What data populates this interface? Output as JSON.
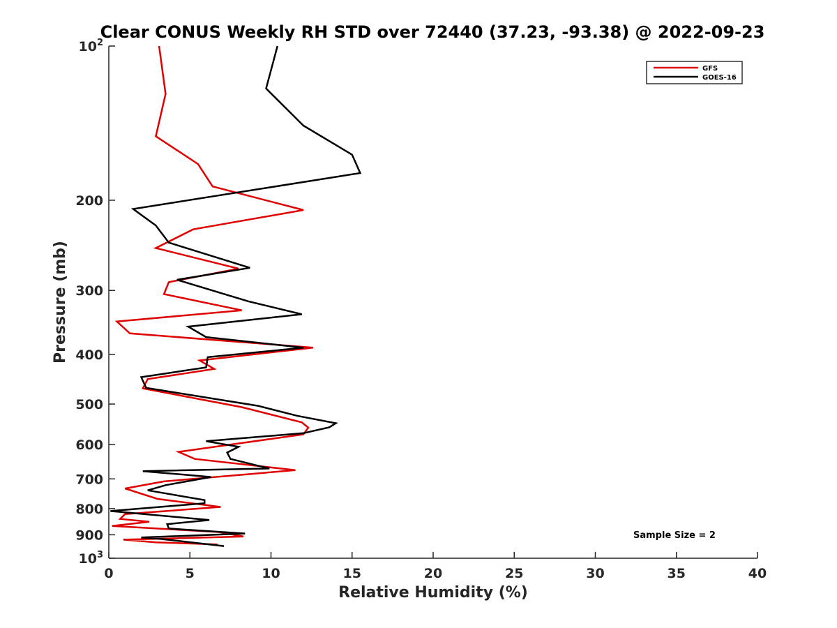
{
  "chart_data": {
    "type": "line",
    "title": "Clear CONUS Weekly RH STD over 72440 (37.23, -93.38) @ 2022-09-23",
    "xlabel": "Relative Humidity (%)",
    "ylabel": "Pressure (mb)",
    "xlim": [
      0,
      40
    ],
    "ylim": [
      100,
      1000
    ],
    "yscale": "log",
    "y_reversed": true,
    "grid": false,
    "legend_position": "top-right",
    "annotation": "Sample Size = 2",
    "x_ticks": [
      "0",
      "5",
      "10",
      "15",
      "20",
      "25",
      "30",
      "35",
      "40"
    ],
    "y_ticks": [
      {
        "value": 100,
        "base": "10",
        "exp": "2"
      },
      {
        "value": 200,
        "label": "200"
      },
      {
        "value": 300,
        "label": "300"
      },
      {
        "value": 400,
        "label": "400"
      },
      {
        "value": 500,
        "label": "500"
      },
      {
        "value": 600,
        "label": "600"
      },
      {
        "value": 700,
        "label": "700"
      },
      {
        "value": 800,
        "label": "800"
      },
      {
        "value": 900,
        "label": "900"
      },
      {
        "value": 1000,
        "base": "10",
        "exp": "3"
      }
    ],
    "series": [
      {
        "name": "GFS",
        "color": "#e00000",
        "points": [
          [
            3.1,
            100
          ],
          [
            3.5,
            124
          ],
          [
            2.9,
            150
          ],
          [
            5.5,
            170
          ],
          [
            6.4,
            188
          ],
          [
            12.0,
            209
          ],
          [
            5.2,
            228
          ],
          [
            2.9,
            248
          ],
          [
            8.0,
            272
          ],
          [
            3.7,
            289
          ],
          [
            3.4,
            305
          ],
          [
            8.2,
            328
          ],
          [
            0.5,
            345
          ],
          [
            1.3,
            364
          ],
          [
            12.6,
            388
          ],
          [
            5.6,
            411
          ],
          [
            6.5,
            427
          ],
          [
            2.4,
            447
          ],
          [
            2.1,
            466
          ],
          [
            8.2,
            507
          ],
          [
            11.9,
            543
          ],
          [
            12.3,
            556
          ],
          [
            12.0,
            573
          ],
          [
            4.3,
            620
          ],
          [
            5.3,
            640
          ],
          [
            11.5,
            673
          ],
          [
            3.4,
            708
          ],
          [
            1.0,
            731
          ],
          [
            3.0,
            766
          ],
          [
            6.9,
            794
          ],
          [
            1.0,
            820
          ],
          [
            0.7,
            838
          ],
          [
            2.5,
            849
          ],
          [
            0.2,
            865
          ],
          [
            6.8,
            889
          ],
          [
            8.3,
            907
          ],
          [
            0.9,
            920
          ],
          [
            2.9,
            931
          ],
          [
            6.7,
            940
          ]
        ]
      },
      {
        "name": "GOES-16",
        "color": "#000000",
        "points": [
          [
            10.4,
            100
          ],
          [
            9.7,
            121
          ],
          [
            12.0,
            143
          ],
          [
            15.0,
            163
          ],
          [
            15.5,
            177
          ],
          [
            1.5,
            208
          ],
          [
            2.9,
            224
          ],
          [
            3.7,
            242
          ],
          [
            8.7,
            271
          ],
          [
            4.2,
            286
          ],
          [
            8.6,
            315
          ],
          [
            11.9,
            334
          ],
          [
            4.9,
            353
          ],
          [
            6.0,
            370
          ],
          [
            12.0,
            388
          ],
          [
            6.1,
            405
          ],
          [
            6.0,
            424
          ],
          [
            2.0,
            443
          ],
          [
            2.3,
            465
          ],
          [
            9.2,
            504
          ],
          [
            11.6,
            527
          ],
          [
            14.0,
            545
          ],
          [
            13.6,
            555
          ],
          [
            12.0,
            570
          ],
          [
            6.0,
            591
          ],
          [
            8.0,
            606
          ],
          [
            7.3,
            622
          ],
          [
            7.5,
            640
          ],
          [
            9.9,
            668
          ],
          [
            2.1,
            676
          ],
          [
            6.3,
            694
          ],
          [
            3.5,
            720
          ],
          [
            2.4,
            737
          ],
          [
            5.9,
            770
          ],
          [
            5.9,
            781
          ],
          [
            0.1,
            809
          ],
          [
            6.2,
            842
          ],
          [
            3.6,
            858
          ],
          [
            3.7,
            875
          ],
          [
            8.4,
            895
          ],
          [
            2.0,
            911
          ],
          [
            3.2,
            917
          ],
          [
            7.1,
            947
          ]
        ]
      }
    ]
  }
}
